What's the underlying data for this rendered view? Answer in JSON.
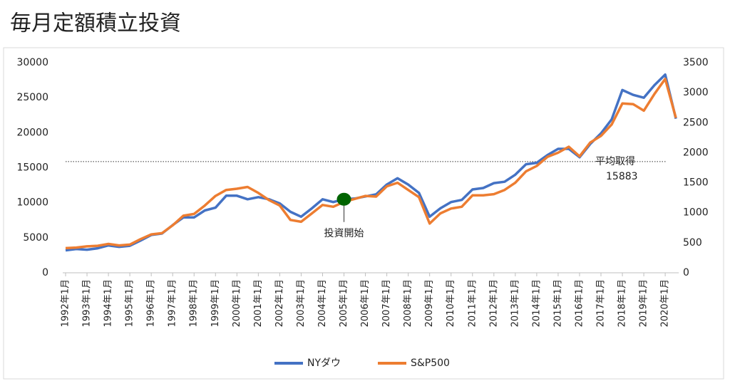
{
  "chart_data": {
    "type": "line",
    "title": "毎月定額積立投資",
    "categories": [
      "1992年1月",
      null,
      "1993年1月",
      null,
      "1994年1月",
      null,
      "1995年1月",
      null,
      "1996年1月",
      null,
      "1997年1月",
      null,
      "1998年1月",
      null,
      "1999年1月",
      null,
      "2000年1月",
      null,
      "2001年1月",
      null,
      "2002年1月",
      null,
      "2003年1月",
      null,
      "2004年1月",
      null,
      "2005年1月",
      null,
      "2006年1月",
      null,
      "2007年1月",
      null,
      "2008年1月",
      null,
      "2009年1月",
      null,
      "2010年1月",
      null,
      "2011年1月",
      null,
      "2012年1月",
      null,
      "2013年1月",
      null,
      "2014年1月",
      null,
      "2015年1月",
      null,
      "2016年1月",
      null,
      "2017年1月",
      null,
      "2018年1月",
      null,
      "2019年1月",
      null,
      "2020年1月",
      null
    ],
    "series": [
      {
        "name": "NYダウ",
        "color": "#4472c4",
        "axis": "y",
        "values": [
          3200,
          3400,
          3300,
          3500,
          3900,
          3700,
          3850,
          4600,
          5400,
          5600,
          6800,
          7900,
          7900,
          8900,
          9300,
          11000,
          11000,
          10500,
          10800,
          10500,
          9900,
          8700,
          8000,
          9200,
          10500,
          10100,
          10500,
          10600,
          10900,
          11200,
          12600,
          13500,
          12600,
          11400,
          8000,
          9200,
          10100,
          10400,
          11900,
          12100,
          12800,
          13000,
          14000,
          15500,
          15700,
          16800,
          17700,
          17700,
          16500,
          18400,
          19900,
          21900,
          26100,
          25400,
          25000,
          26800,
          28300,
          22000
        ]
      },
      {
        "name": "S&P500",
        "color": "#ed7d31",
        "axis": "y2",
        "values": [
          410,
          420,
          440,
          450,
          480,
          455,
          470,
          560,
          640,
          660,
          790,
          950,
          980,
          1120,
          1280,
          1380,
          1400,
          1430,
          1330,
          1210,
          1120,
          880,
          850,
          990,
          1130,
          1100,
          1180,
          1230,
          1280,
          1270,
          1440,
          1500,
          1380,
          1260,
          820,
          990,
          1070,
          1100,
          1290,
          1290,
          1310,
          1380,
          1500,
          1690,
          1780,
          1930,
          2000,
          2100,
          1940,
          2170,
          2280,
          2470,
          2820,
          2810,
          2700,
          2980,
          3230,
          2580
        ]
      }
    ],
    "ylim": [
      0,
      30000
    ],
    "yticks": [
      0,
      5000,
      10000,
      15000,
      20000,
      25000,
      30000
    ],
    "y2lim": [
      0,
      3500
    ],
    "y2ticks": [
      0,
      500,
      1000,
      1500,
      2000,
      2500,
      3000,
      3500
    ],
    "average_cost_label": "平均取得",
    "average_cost": 15883,
    "start_label": "投資開始",
    "start_color": "#006400",
    "legend": "bottom"
  }
}
